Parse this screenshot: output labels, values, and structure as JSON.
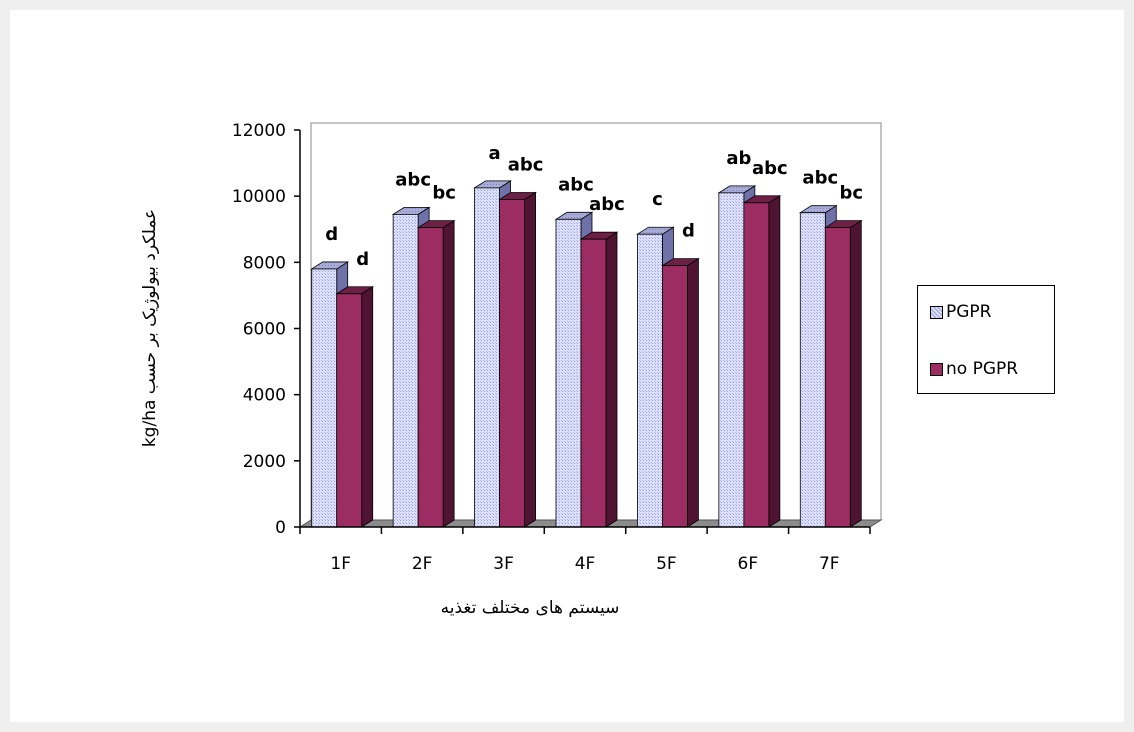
{
  "chart_data": {
    "type": "bar",
    "categories": [
      "1F",
      "2F",
      "3F",
      "4F",
      "5F",
      "6F",
      "7F"
    ],
    "series": [
      {
        "name": "PGPR",
        "color": "#dde0fb",
        "values": [
          7800,
          9450,
          10250,
          9300,
          8850,
          10100,
          9500
        ],
        "letters": [
          "d",
          "abc",
          "a",
          "abc",
          "c",
          "ab",
          "abc"
        ]
      },
      {
        "name": "no PGPR",
        "color": "#9b2d62",
        "values": [
          7050,
          9050,
          9900,
          8700,
          7900,
          9800,
          9050
        ],
        "letters": [
          "d",
          "bc",
          "abc",
          "abc",
          "d",
          "abc",
          "bc"
        ]
      }
    ],
    "yticks": [
      0,
      2000,
      4000,
      6000,
      8000,
      10000,
      12000
    ],
    "ylim": [
      0,
      12000
    ],
    "ylabel": "عملکرد بیولوژیک بر حسب kg/ha",
    "xlabel": "سیستم های مختلف تغذیه",
    "legend_position": "right",
    "grid": false
  }
}
